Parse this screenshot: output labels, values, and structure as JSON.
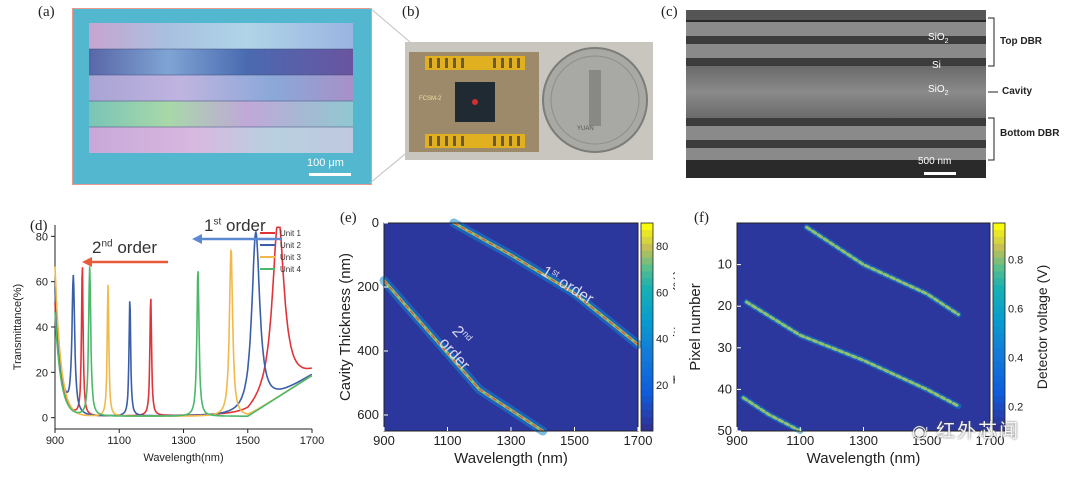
{
  "panels": {
    "a": {
      "label": "(a)",
      "scale_bar": "100 μm"
    },
    "b": {
      "label": "(b)",
      "chip_text": "FCSM-2",
      "coin_text": "YUAN"
    },
    "c": {
      "label": "(c)",
      "scale_bar": "500 nm",
      "layers": [
        "SiO",
        "Si",
        "SiO"
      ],
      "brackets": [
        "Top DBR",
        "Cavity",
        "Bottom DBR"
      ]
    },
    "d": {
      "label": "(d)",
      "first_order": "1",
      "second_order": "2",
      "first_sup": "st",
      "second_sup": "nd",
      "order_word": "order",
      "legend": [
        "Unit 1",
        "Unit 2",
        "Unit 3",
        "Unit 4"
      ]
    },
    "e": {
      "label": "(e)",
      "first_order": "1",
      "first_sup": "st",
      "second_order": "2",
      "second_sup": "nd",
      "order_word": "order"
    },
    "f": {
      "label": "(f)"
    }
  },
  "watermark": "红外芯闻",
  "colors": {
    "unit1": "#e0343a",
    "unit2": "#3a5ea8",
    "unit3": "#f2b94a",
    "unit4": "#4cb86a",
    "arrow_blue": "#5b8ad0",
    "arrow_red": "#e85a3a"
  },
  "chart_data": [
    {
      "panel": "d",
      "type": "line",
      "xlabel": "Wavelength(nm)",
      "ylabel": "Transmittance(%)",
      "xlim": [
        900,
        1700
      ],
      "ylim": [
        -5,
        85
      ],
      "xticks": [
        "900",
        "1100",
        "1300",
        "1500",
        "1700"
      ],
      "yticks": [
        "0",
        "20",
        "40",
        "60",
        "80"
      ],
      "series": [
        {
          "name": "Unit 1",
          "color": "#e0343a",
          "peaks": [
            [
              985,
              67,
              3
            ],
            [
              1198,
              53,
              3
            ],
            [
              1595,
              79,
              22
            ]
          ],
          "left": [
            [
              900,
              50
            ]
          ]
        },
        {
          "name": "Unit 2",
          "color": "#3a5ea8",
          "peaks": [
            [
              957,
              60,
              5
            ],
            [
              1133,
              52,
              3
            ],
            [
              1525,
              79,
              15
            ]
          ],
          "left": [
            [
              900,
              55
            ]
          ]
        },
        {
          "name": "Unit 3",
          "color": "#f2b94a",
          "peaks": [
            [
              1065,
              58,
              3
            ],
            [
              1448,
              74,
              6
            ]
          ],
          "left": [
            [
              900,
              66
            ]
          ]
        },
        {
          "name": "Unit 4",
          "color": "#4cb86a",
          "peaks": [
            [
              1008,
              66,
              4
            ],
            [
              1345,
              65,
              4
            ]
          ],
          "left": [
            [
              900,
              46
            ]
          ]
        }
      ]
    },
    {
      "panel": "e",
      "type": "heatmap",
      "xlabel": "Wavelength (nm)",
      "ylabel": "Cavity Thickness (nm)",
      "colorbar_label": "Transmittance (%)",
      "xlim": [
        900,
        1700
      ],
      "ylim": [
        0,
        650
      ],
      "xticks": [
        "900",
        "1100",
        "1300",
        "1500",
        "1700"
      ],
      "yticks": [
        "0",
        "200",
        "400",
        "600"
      ],
      "cbar_ticks": [
        "20",
        "40",
        "60",
        "80"
      ],
      "cbar_range": [
        0,
        90
      ],
      "curves": [
        {
          "name": "1st order",
          "x": [
            1120,
            1300,
            1500,
            1700
          ],
          "y": [
            0,
            100,
            220,
            380
          ]
        },
        {
          "name": "2nd order",
          "x": [
            900,
            1050,
            1200,
            1400
          ],
          "y": [
            180,
            350,
            520,
            650
          ]
        }
      ]
    },
    {
      "panel": "f",
      "type": "heatmap",
      "xlabel": "Wavelength (nm)",
      "ylabel": "Pixel number",
      "colorbar_label": "Detector voltage (V)",
      "xlim": [
        900,
        1700
      ],
      "ylim": [
        0,
        50
      ],
      "xticks": [
        "900",
        "1100",
        "1300",
        "1500",
        "1700"
      ],
      "yticks": [
        "10",
        "20",
        "30",
        "40",
        "50"
      ],
      "cbar_ticks": [
        "0.2",
        "0.4",
        "0.6",
        "0.8"
      ],
      "cbar_range": [
        0.1,
        0.95
      ],
      "curves": [
        {
          "x": [
            1120,
            1300,
            1500,
            1600
          ],
          "y": [
            1,
            10,
            17,
            22
          ]
        },
        {
          "x": [
            930,
            1100,
            1300,
            1500,
            1600
          ],
          "y": [
            19,
            27,
            33,
            40,
            44
          ]
        },
        {
          "x": [
            920,
            1000,
            1100
          ],
          "y": [
            42,
            46,
            50
          ]
        }
      ]
    }
  ]
}
